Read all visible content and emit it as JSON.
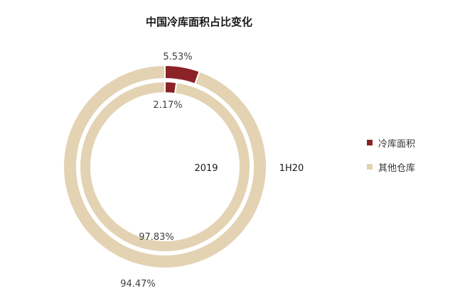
{
  "chart_data": {
    "type": "pie",
    "title": "中国冷库面积占比变化",
    "categories": [
      "冷库面积",
      "其他仓库"
    ],
    "colors": {
      "冷库面积": "#8b2326",
      "其他仓库": "#e3d3b3"
    },
    "series": [
      {
        "name": "2019",
        "values": [
          2.17,
          97.83
        ],
        "labels": [
          "2.17%",
          "97.83%"
        ]
      },
      {
        "name": "1H20",
        "values": [
          5.53,
          94.47
        ],
        "labels": [
          "5.53%",
          "94.47%"
        ]
      }
    ],
    "legend_position": "right"
  }
}
